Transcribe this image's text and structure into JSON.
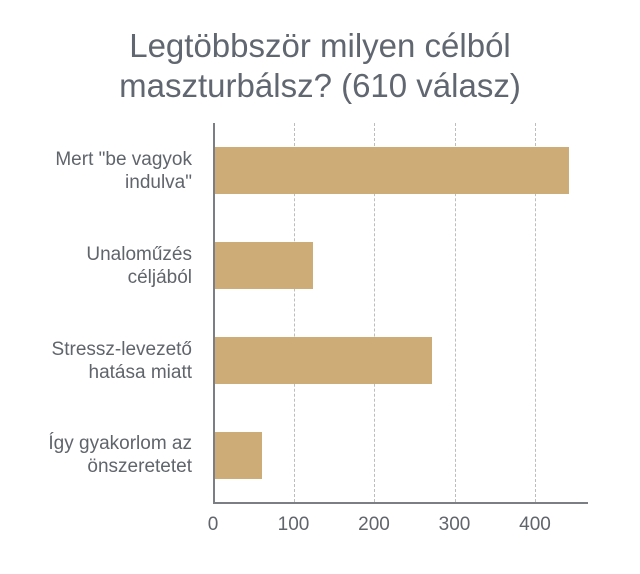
{
  "title": {
    "line1": "Legtöbbször milyen célból",
    "line2": "maszturbálsz? (610 válasz)"
  },
  "colors": {
    "bar": "#cdac78",
    "axis": "#7b7f85",
    "grid": "#bdbdbd",
    "text": "#60656c"
  },
  "categories": [
    {
      "line1": "Mert \"be vagyok",
      "line2": "indulva\""
    },
    {
      "line1": "Unaloműzés",
      "line2": "céljából"
    },
    {
      "line1": "Stressz-levezető",
      "line2": "hatása miatt"
    },
    {
      "line1": "Így gyakorlom az",
      "line2": "önszeretetet"
    }
  ],
  "x_ticks": [
    "0",
    "100",
    "200",
    "300",
    "400"
  ],
  "chart_data": {
    "type": "bar",
    "orientation": "horizontal",
    "title": "Legtöbbször milyen célból maszturbálsz? (610 válasz)",
    "categories": [
      "Mert \"be vagyok indulva\"",
      "Unaloműzés céljából",
      "Stressz-levezető hatása miatt",
      "Így gyakorlom az önszeretetet"
    ],
    "values": [
      442,
      124,
      272,
      61
    ],
    "xlabel": "",
    "ylabel": "",
    "xlim": [
      0,
      465
    ],
    "x_ticks": [
      0,
      100,
      200,
      300,
      400
    ],
    "grid": "vertical dashed",
    "legend": "none"
  }
}
